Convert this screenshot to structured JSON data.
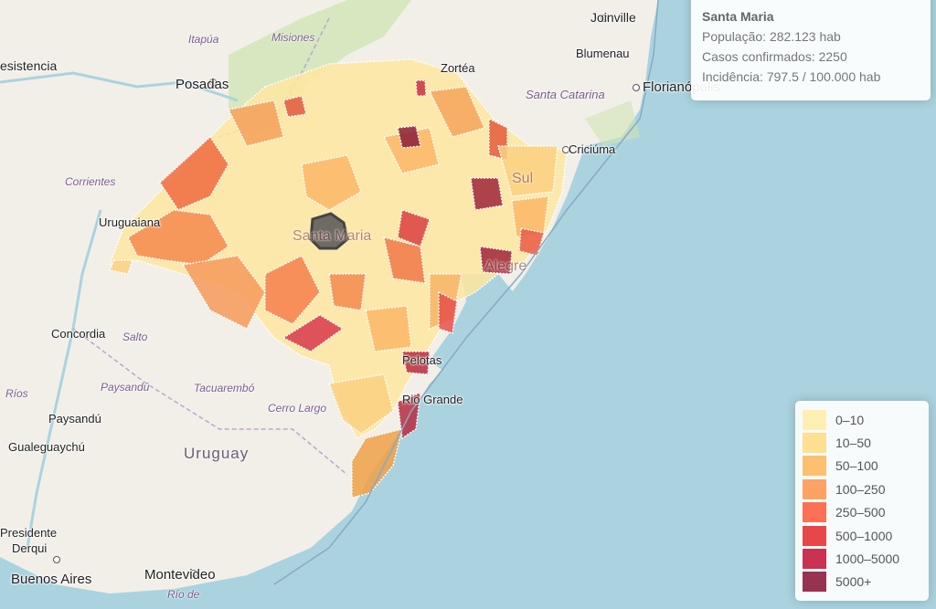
{
  "info": {
    "title": "Santa Maria",
    "population": "População: 282.123 hab",
    "cases": "Casos confirmados: 2250",
    "incidence": "Incidência: 797.5 / 100.000 hab"
  },
  "legend": [
    {
      "label": "0–10",
      "color": "#ffeda0"
    },
    {
      "label": "10–50",
      "color": "#fed976"
    },
    {
      "label": "50–100",
      "color": "#feb24c"
    },
    {
      "label": "100–250",
      "color": "#fd8d3c"
    },
    {
      "label": "250–500",
      "color": "#fc4e2a"
    },
    {
      "label": "500–1000",
      "color": "#e31a1c"
    },
    {
      "label": "1000–5000",
      "color": "#bd0026"
    },
    {
      "label": "5000+",
      "color": "#800026"
    }
  ],
  "labels": {
    "joinville": "Joinville",
    "blumenau": "Blumenau",
    "itapua": "Itapúa",
    "misiones": "Misiones",
    "resistencia": "esistencia",
    "posadas": "Posadas",
    "zortea": "Zortéa",
    "santa_catarina": "Santa Catarina",
    "florianopolis": "Florianópolis",
    "criciuma": "Criciúma",
    "corrientes": "Corrientes",
    "uruguaiana": "Uruguaiana",
    "santa_maria": "Santa Maria",
    "concordia": "Concordia",
    "salto": "Salto",
    "paysandu_dept": "Paysandú",
    "tacuarembo": "Tacuarembó",
    "rios": "Ríos",
    "paysandu": "Paysandú",
    "cerro_largo": "Cerro Largo",
    "pelotas": "Pelotas",
    "rio_grande": "Rio Grande",
    "gualeguaychu": "Gualeguaychú",
    "uruguay": "Uruguay",
    "presidente": "Presidente",
    "derqui": "Derqui",
    "buenos_aires": "Buenos Aires",
    "montevideo": "Montevideo",
    "rio_de": "Río de",
    "sul": "Sul",
    "alegre": "Alegre"
  }
}
